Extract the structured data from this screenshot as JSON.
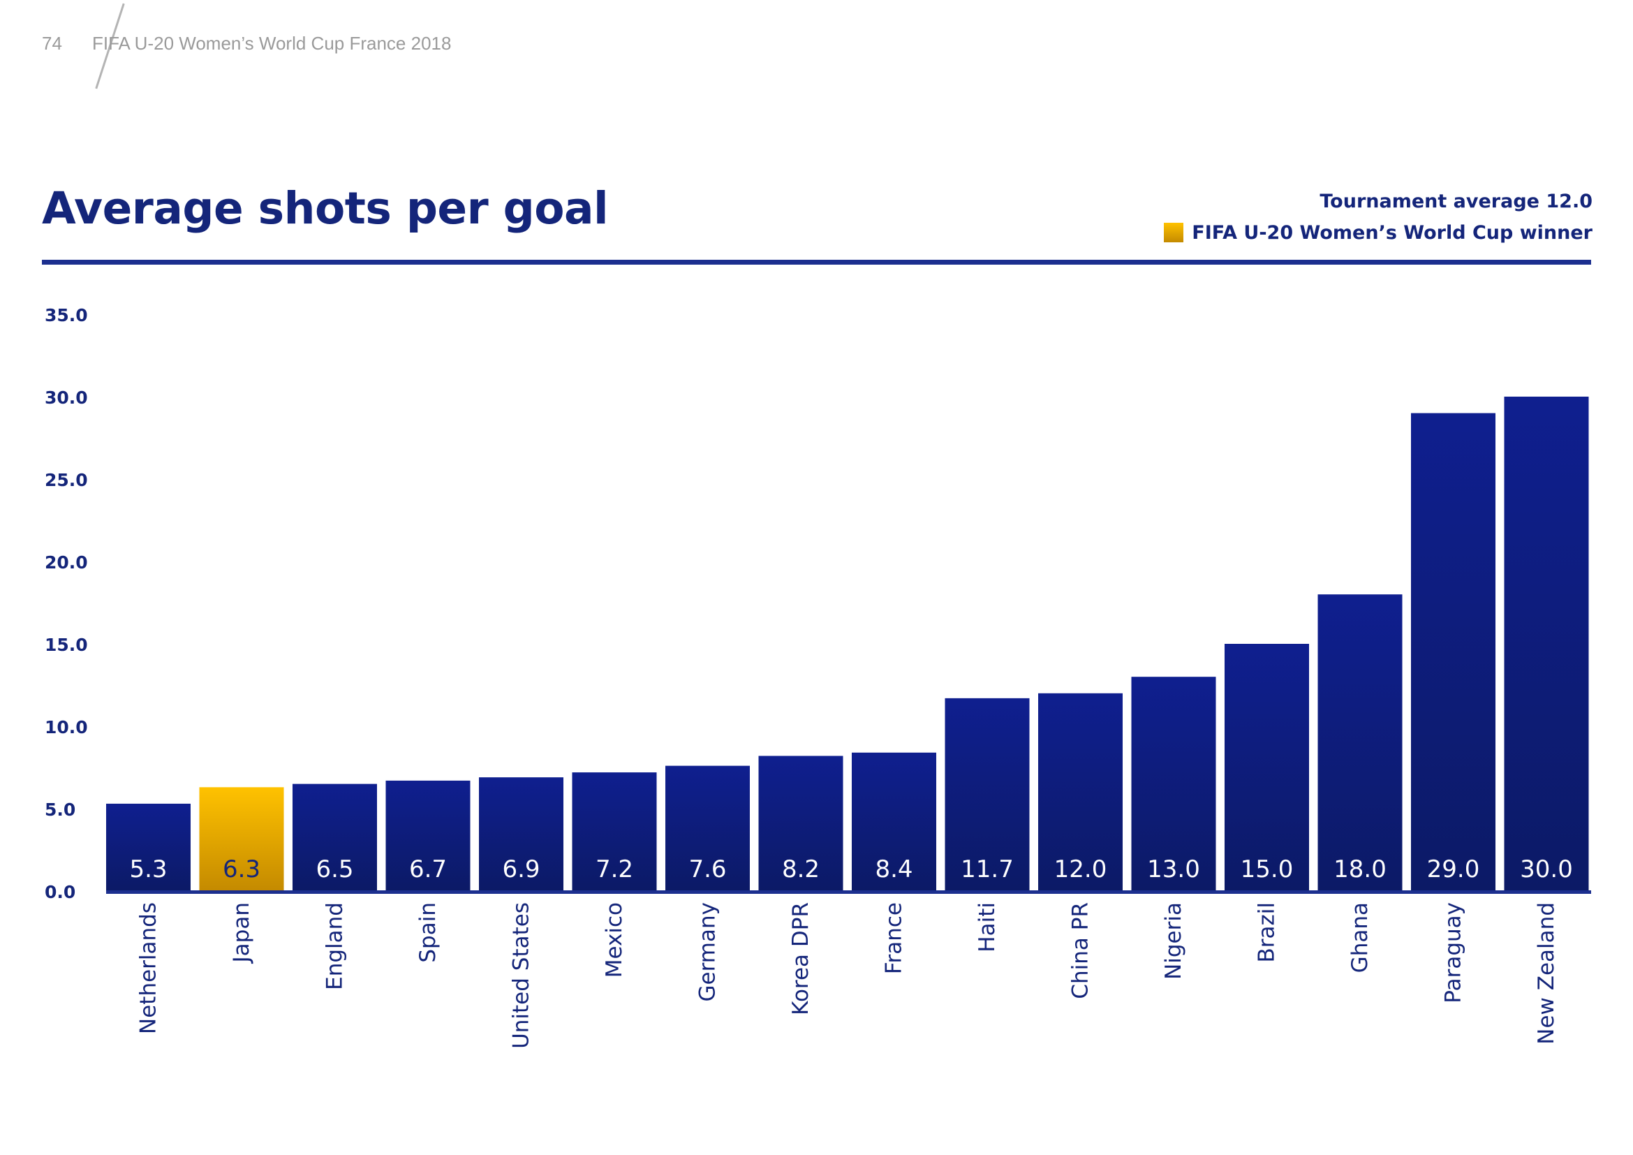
{
  "header": {
    "page_number": "74",
    "document_title": "FIFA U-20 Women’s World Cup France 2018"
  },
  "colors": {
    "bar_top": "#0f1f8f",
    "bar_bottom": "#0c1a66",
    "winner_top": "#ffc200",
    "winner_bottom": "#c48a00",
    "text_dark": "#14257a",
    "axis_line": "#1c2f8f"
  },
  "legend": {
    "tournament_average": "Tournament average 12.0",
    "winner_label": "FIFA U-20 Women’s World Cup winner",
    "winner_icon": "square-swatch-icon"
  },
  "chart_data": {
    "type": "bar",
    "title": "Average shots per goal",
    "categories": [
      "Netherlands",
      "Japan",
      "England",
      "Spain",
      "United States",
      "Mexico",
      "Germany",
      "Korea DPR",
      "France",
      "Haiti",
      "China PR",
      "Nigeria",
      "Brazil",
      "Ghana",
      "Paraguay",
      "New Zealand"
    ],
    "values": [
      5.3,
      6.3,
      6.5,
      6.7,
      6.9,
      7.2,
      7.6,
      8.2,
      8.4,
      11.7,
      12.0,
      13.0,
      15.0,
      18.0,
      29.0,
      30.0
    ],
    "value_labels": [
      "5.3",
      "6.3",
      "6.5",
      "6.7",
      "6.9",
      "7.2",
      "7.6",
      "8.2",
      "8.4",
      "11.7",
      "12.0",
      "13.0",
      "15.0",
      "18.0",
      "29.0",
      "30.0"
    ],
    "highlight": "Japan",
    "ylim": [
      0,
      35
    ],
    "yticks": [
      "0.0",
      "5.0",
      "10.0",
      "15.0",
      "20.0",
      "25.0",
      "30.0",
      "35.0"
    ],
    "xlabel": "",
    "ylabel": "",
    "grid": false
  }
}
